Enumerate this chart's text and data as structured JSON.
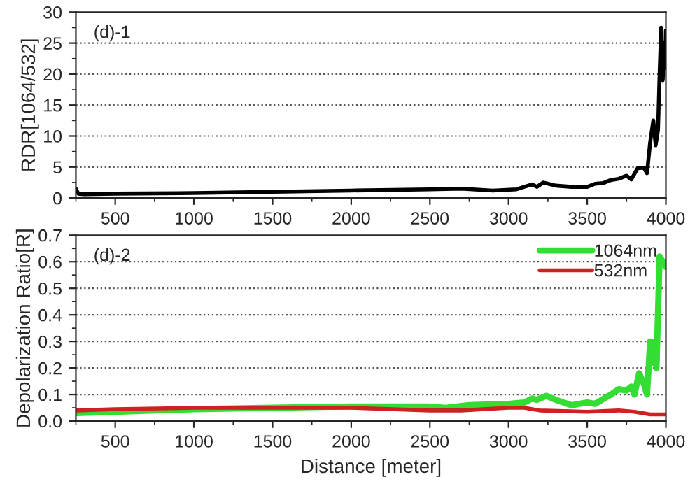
{
  "chart_data": [
    {
      "type": "line",
      "ylabel": "RDR[1064/532]",
      "annotations": [
        "(d)-1"
      ],
      "xlim": [
        250,
        4000
      ],
      "xticks": [
        500,
        1000,
        1500,
        2000,
        2500,
        3000,
        3500,
        4000
      ],
      "ylim": [
        0,
        30
      ],
      "yticks": [
        0,
        5,
        10,
        15,
        20,
        25,
        30
      ],
      "grid": "y",
      "legend": false,
      "series": [
        {
          "color": "#000000",
          "x": [
            250,
            265,
            300,
            500,
            1000,
            1500,
            2000,
            2500,
            2700,
            2900,
            3050,
            3100,
            3150,
            3180,
            3220,
            3300,
            3400,
            3500,
            3550,
            3600,
            3650,
            3700,
            3750,
            3780,
            3820,
            3860,
            3880,
            3900,
            3920,
            3935,
            3950,
            3960,
            3970,
            3980,
            3990,
            3995,
            4000
          ],
          "values": [
            1.5,
            0.7,
            0.6,
            0.7,
            0.8,
            1.0,
            1.2,
            1.4,
            1.5,
            1.2,
            1.4,
            1.8,
            2.2,
            1.8,
            2.5,
            2.0,
            1.8,
            1.8,
            2.3,
            2.4,
            2.9,
            3.1,
            3.6,
            3.0,
            4.8,
            4.9,
            4.0,
            9,
            12.5,
            8.5,
            11,
            20,
            27.5,
            19,
            25,
            21,
            27
          ]
        }
      ]
    },
    {
      "type": "line",
      "xlabel": "Distance [meter]",
      "ylabel": "Depolarization Ratio[R]",
      "annotations": [
        "(d)-2"
      ],
      "xlim": [
        250,
        4000
      ],
      "xticks": [
        500,
        1000,
        1500,
        2000,
        2500,
        3000,
        3500,
        4000
      ],
      "ylim": [
        0,
        0.7
      ],
      "yticks": [
        {
          "value": 0,
          "label": "0.0"
        },
        0.1,
        0.2,
        0.3,
        0.4,
        0.5,
        0.6,
        0.7
      ],
      "grid": "y",
      "legend": "top right",
      "series": [
        {
          "name": "1064nm",
          "color": "#33dd33",
          "x": [
            250,
            500,
            1000,
            1500,
            2000,
            2500,
            2600,
            2750,
            3000,
            3100,
            3150,
            3180,
            3240,
            3300,
            3400,
            3500,
            3550,
            3650,
            3700,
            3750,
            3780,
            3800,
            3830,
            3860,
            3880,
            3900,
            3920,
            3930,
            3940,
            3960,
            3980,
            4000
          ],
          "values": [
            0.03,
            0.035,
            0.045,
            0.05,
            0.055,
            0.055,
            0.05,
            0.06,
            0.065,
            0.07,
            0.085,
            0.08,
            0.095,
            0.08,
            0.06,
            0.07,
            0.065,
            0.1,
            0.12,
            0.115,
            0.13,
            0.1,
            0.18,
            0.14,
            0.1,
            0.3,
            0.22,
            0.3,
            0.2,
            0.62,
            0.6,
            0.58
          ]
        },
        {
          "name": "532nm",
          "color": "#cc2222",
          "x": [
            250,
            500,
            1000,
            1500,
            2000,
            2500,
            2700,
            3000,
            3100,
            3200,
            3500,
            3700,
            3800,
            3900,
            4000
          ],
          "values": [
            0.04,
            0.045,
            0.05,
            0.05,
            0.05,
            0.04,
            0.04,
            0.05,
            0.05,
            0.04,
            0.035,
            0.04,
            0.035,
            0.025,
            0.025
          ]
        }
      ]
    }
  ]
}
